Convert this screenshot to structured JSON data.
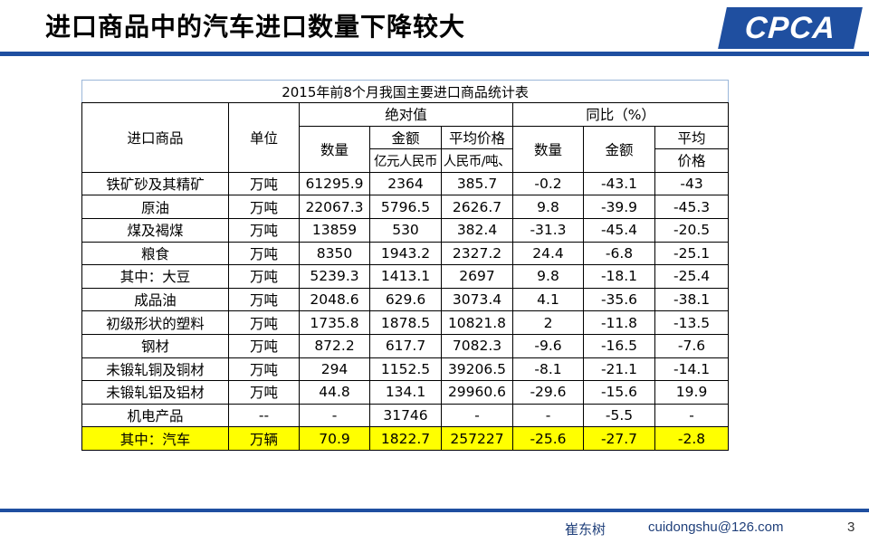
{
  "slide": {
    "title": "进口商品中的汽车进口数量下降较大",
    "logo_text": "CPCA",
    "footer": {
      "author": "崔东树",
      "email": "cuidongshu@126.com",
      "page_number": "3"
    }
  },
  "table": {
    "caption": "2015年前8个月我国主要进口商品统计表",
    "headers": {
      "product": "进口商品",
      "unit": "单位",
      "absolute": "绝对值",
      "yoy": "同比（%）",
      "quantity": "数量",
      "amount": "金额",
      "avg_price": "平均价格",
      "amount_unit": "亿元人民币",
      "price_unit": "人民币/吨、",
      "yoy_quantity": "数量",
      "yoy_amount": "金额",
      "yoy_avg_line1": "平均",
      "yoy_avg_line2": "价格"
    },
    "rows": [
      {
        "name": "铁矿砂及其精矿",
        "unit": "万吨",
        "quantity": "61295.9",
        "amount": "2364",
        "avg_price": "385.7",
        "yoy_quantity": "-0.2",
        "yoy_amount": "-43.1",
        "yoy_price": "-43"
      },
      {
        "name": "原油",
        "unit": "万吨",
        "quantity": "22067.3",
        "amount": "5796.5",
        "avg_price": "2626.7",
        "yoy_quantity": "9.8",
        "yoy_amount": "-39.9",
        "yoy_price": "-45.3"
      },
      {
        "name": "煤及褐煤",
        "unit": "万吨",
        "quantity": "13859",
        "amount": "530",
        "avg_price": "382.4",
        "yoy_quantity": "-31.3",
        "yoy_amount": "-45.4",
        "yoy_price": "-20.5"
      },
      {
        "name": "粮食",
        "unit": "万吨",
        "quantity": "8350",
        "amount": "1943.2",
        "avg_price": "2327.2",
        "yoy_quantity": "24.4",
        "yoy_amount": "-6.8",
        "yoy_price": "-25.1"
      },
      {
        "name": "其中：大豆",
        "unit": "万吨",
        "quantity": "5239.3",
        "amount": "1413.1",
        "avg_price": "2697",
        "yoy_quantity": "9.8",
        "yoy_amount": "-18.1",
        "yoy_price": "-25.4"
      },
      {
        "name": "成品油",
        "unit": "万吨",
        "quantity": "2048.6",
        "amount": "629.6",
        "avg_price": "3073.4",
        "yoy_quantity": "4.1",
        "yoy_amount": "-35.6",
        "yoy_price": "-38.1"
      },
      {
        "name": "初级形状的塑料",
        "unit": "万吨",
        "quantity": "1735.8",
        "amount": "1878.5",
        "avg_price": "10821.8",
        "yoy_quantity": "2",
        "yoy_amount": "-11.8",
        "yoy_price": "-13.5"
      },
      {
        "name": "钢材",
        "unit": "万吨",
        "quantity": "872.2",
        "amount": "617.7",
        "avg_price": "7082.3",
        "yoy_quantity": "-9.6",
        "yoy_amount": "-16.5",
        "yoy_price": "-7.6"
      },
      {
        "name": "未锻轧铜及铜材",
        "unit": "万吨",
        "quantity": "294",
        "amount": "1152.5",
        "avg_price": "39206.5",
        "yoy_quantity": "-8.1",
        "yoy_amount": "-21.1",
        "yoy_price": "-14.1"
      },
      {
        "name": "未锻轧铝及铝材",
        "unit": "万吨",
        "quantity": "44.8",
        "amount": "134.1",
        "avg_price": "29960.6",
        "yoy_quantity": "-29.6",
        "yoy_amount": "-15.6",
        "yoy_price": "19.9"
      },
      {
        "name": "机电产品",
        "unit": "--",
        "quantity": "-",
        "amount": "31746",
        "avg_price": "-",
        "yoy_quantity": "-",
        "yoy_amount": "-5.5",
        "yoy_price": "-"
      },
      {
        "name": "其中：汽车",
        "unit": "万辆",
        "quantity": "70.9",
        "amount": "1822.7",
        "avg_price": "257227",
        "yoy_quantity": "-25.6",
        "yoy_amount": "-27.7",
        "yoy_price": "-2.8"
      }
    ],
    "highlight_row_color": "#ffff00",
    "accent_color": "#1f4fa0"
  }
}
